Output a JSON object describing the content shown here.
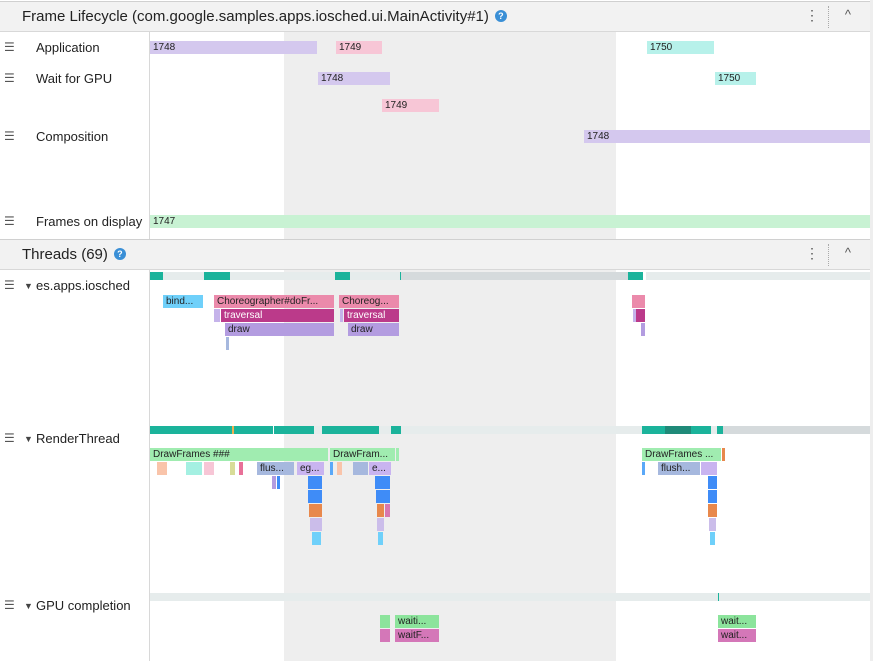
{
  "frame_lifecycle": {
    "title": "Frame Lifecycle (com.google.samples.apps.iosched.ui.MainActivity#1)",
    "help": "?",
    "menu": "⋮",
    "collapse": "^",
    "tracks": [
      "Application",
      "Wait for GPU",
      "Composition",
      "Frames on display"
    ],
    "frames": {
      "app1748": "1748",
      "app1749": "1749",
      "app1750": "1750",
      "gpu1748": "1748",
      "gpu1750": "1750",
      "gpu1749": "1749",
      "comp1748": "1748",
      "disp1747": "1747"
    }
  },
  "threads": {
    "title": "Threads (69)",
    "help": "?",
    "menu": "⋮",
    "collapse": "^",
    "tracks": [
      "es.apps.iosched",
      "RenderThread",
      "GPU completion"
    ],
    "main_slices": {
      "bind": "bind...",
      "choreo1": "Choreographer#doFr...",
      "choreo2": "Choreog...",
      "trav1": "traversal",
      "trav2": "traversal",
      "draw1": "draw",
      "draw2": "draw"
    },
    "render_slices": {
      "df1": "DrawFrames ###",
      "df2": "DrawFram...",
      "df3": "DrawFrames ...",
      "flush1": "flus...",
      "eg1": "eg...",
      "e2": "e...",
      "flush3": "flush..."
    },
    "gpu_slices": {
      "w1": "waiti...",
      "w2": "waitF...",
      "w3": "wait...",
      "w4": "wait..."
    }
  },
  "colors": {
    "purple": "#d4c8ee",
    "pink": "#f7c6d6",
    "teal": "#b7f1ea",
    "green": "#c8f2d3",
    "running": "#1bb39b",
    "magenta": "#bb3a8a"
  }
}
